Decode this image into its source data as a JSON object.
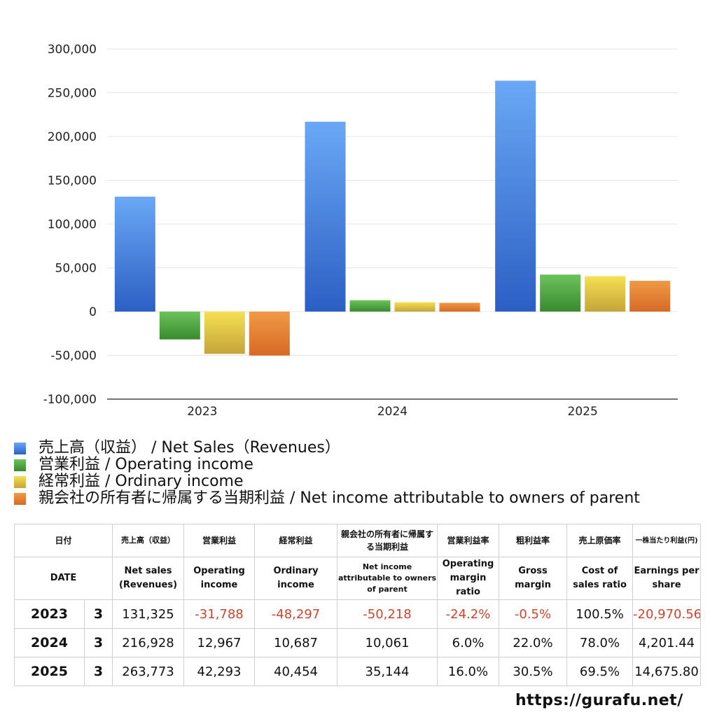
{
  "chart_data": {
    "type": "bar",
    "categories": [
      "2023",
      "2024",
      "2025"
    ],
    "series": [
      {
        "name": "売上高（収益） / Net Sales（Revenues）",
        "values": [
          131325,
          216928,
          263773
        ],
        "color": "#3f7fe0"
      },
      {
        "name": "営業利益 / Operating income",
        "values": [
          -31788,
          12967,
          42293
        ],
        "color": "#4a9e3a"
      },
      {
        "name": "経常利益 / Ordinary income",
        "values": [
          -48297,
          10687,
          40454
        ],
        "color": "#dcc23a"
      },
      {
        "name": "親会社の所有者に帰属する当期利益 / Net income attributable to owners of parent",
        "values": [
          -50218,
          10061,
          35144
        ],
        "color": "#e07b2c"
      }
    ],
    "yticks": [
      "300,000",
      "250,000",
      "200,000",
      "150,000",
      "100,000",
      "50,000",
      "0",
      "-50,000",
      "-100,000"
    ],
    "ylim": [
      -100000,
      300000
    ],
    "grid": true,
    "legend": "bottom"
  },
  "table": {
    "header_jp": [
      "日付",
      "売上高（収益）",
      "営業利益",
      "経常利益",
      "親会社の所有者に帰属する当期利益",
      "営業利益率",
      "粗利益率",
      "売上原価率",
      "一株当たり利益(円)"
    ],
    "header_en": [
      "DATE",
      "Net sales (Revenues)",
      "Operating income",
      "Ordinary income",
      "Net income attributable to owners of parent",
      "Operating margin ratio",
      "Gross margin",
      "Cost of sales ratio",
      "Earnings per share"
    ],
    "rows": [
      {
        "year": "2023",
        "month": "3",
        "sales": "131,325",
        "op": "-31,788",
        "ord": "-48,297",
        "net": "-50,218",
        "opm": "-24.2%",
        "gm": "-0.5%",
        "cos": "100.5%",
        "eps": "-20,970.56"
      },
      {
        "year": "2024",
        "month": "3",
        "sales": "216,928",
        "op": "12,967",
        "ord": "10,687",
        "net": "10,061",
        "opm": "6.0%",
        "gm": "22.0%",
        "cos": "78.0%",
        "eps": "4,201.44"
      },
      {
        "year": "2025",
        "month": "3",
        "sales": "263,773",
        "op": "42,293",
        "ord": "40,454",
        "net": "35,144",
        "opm": "16.0%",
        "gm": "30.5%",
        "cos": "69.5%",
        "eps": "14,675.80"
      }
    ]
  },
  "source": "https://gurafu.net/"
}
